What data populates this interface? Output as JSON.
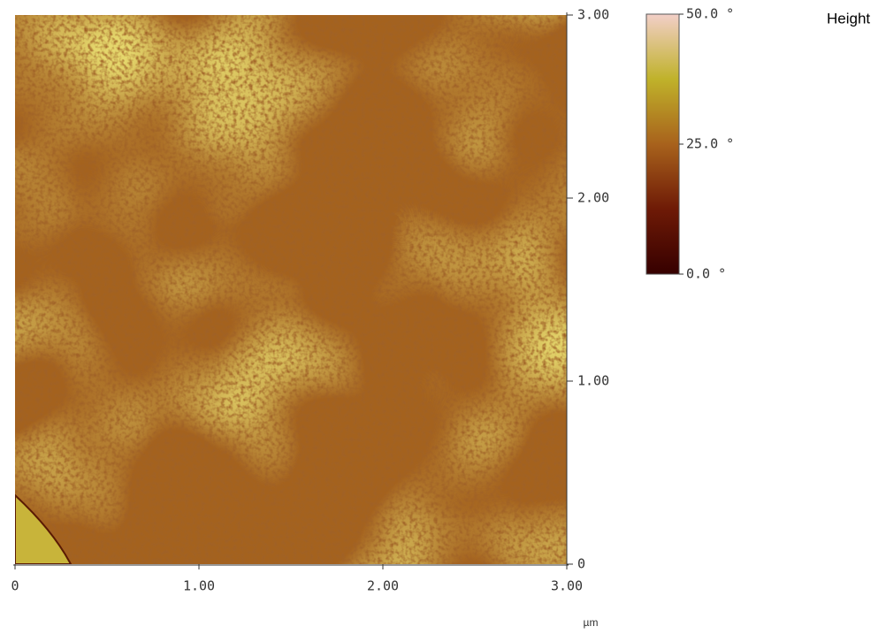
{
  "chart_data": {
    "type": "image",
    "title": "Height",
    "x_label": "µm",
    "xlim": [
      0,
      3
    ],
    "ylim": [
      0,
      3
    ],
    "xticks": [
      0,
      {
        "value": 1,
        "label": "1.00"
      },
      {
        "value": 2,
        "label": "2.00"
      },
      {
        "value": 3,
        "label": "3.00"
      }
    ],
    "yticks": [
      0,
      {
        "value": 1,
        "label": "1.00"
      },
      {
        "value": 2,
        "label": "2.00"
      },
      {
        "value": 3,
        "label": "3.00"
      }
    ],
    "colorbar": {
      "lim": [
        0,
        50
      ],
      "ticks": [
        {
          "value": 0,
          "label": "0.0 °"
        },
        {
          "value": 25,
          "label": "25.0 °"
        },
        {
          "value": 50,
          "label": "50.0 °"
        }
      ],
      "colors": [
        "#360000",
        "#6e1a06",
        "#a8621c",
        "#c0b22a",
        "#f2cfc8"
      ]
    }
  }
}
